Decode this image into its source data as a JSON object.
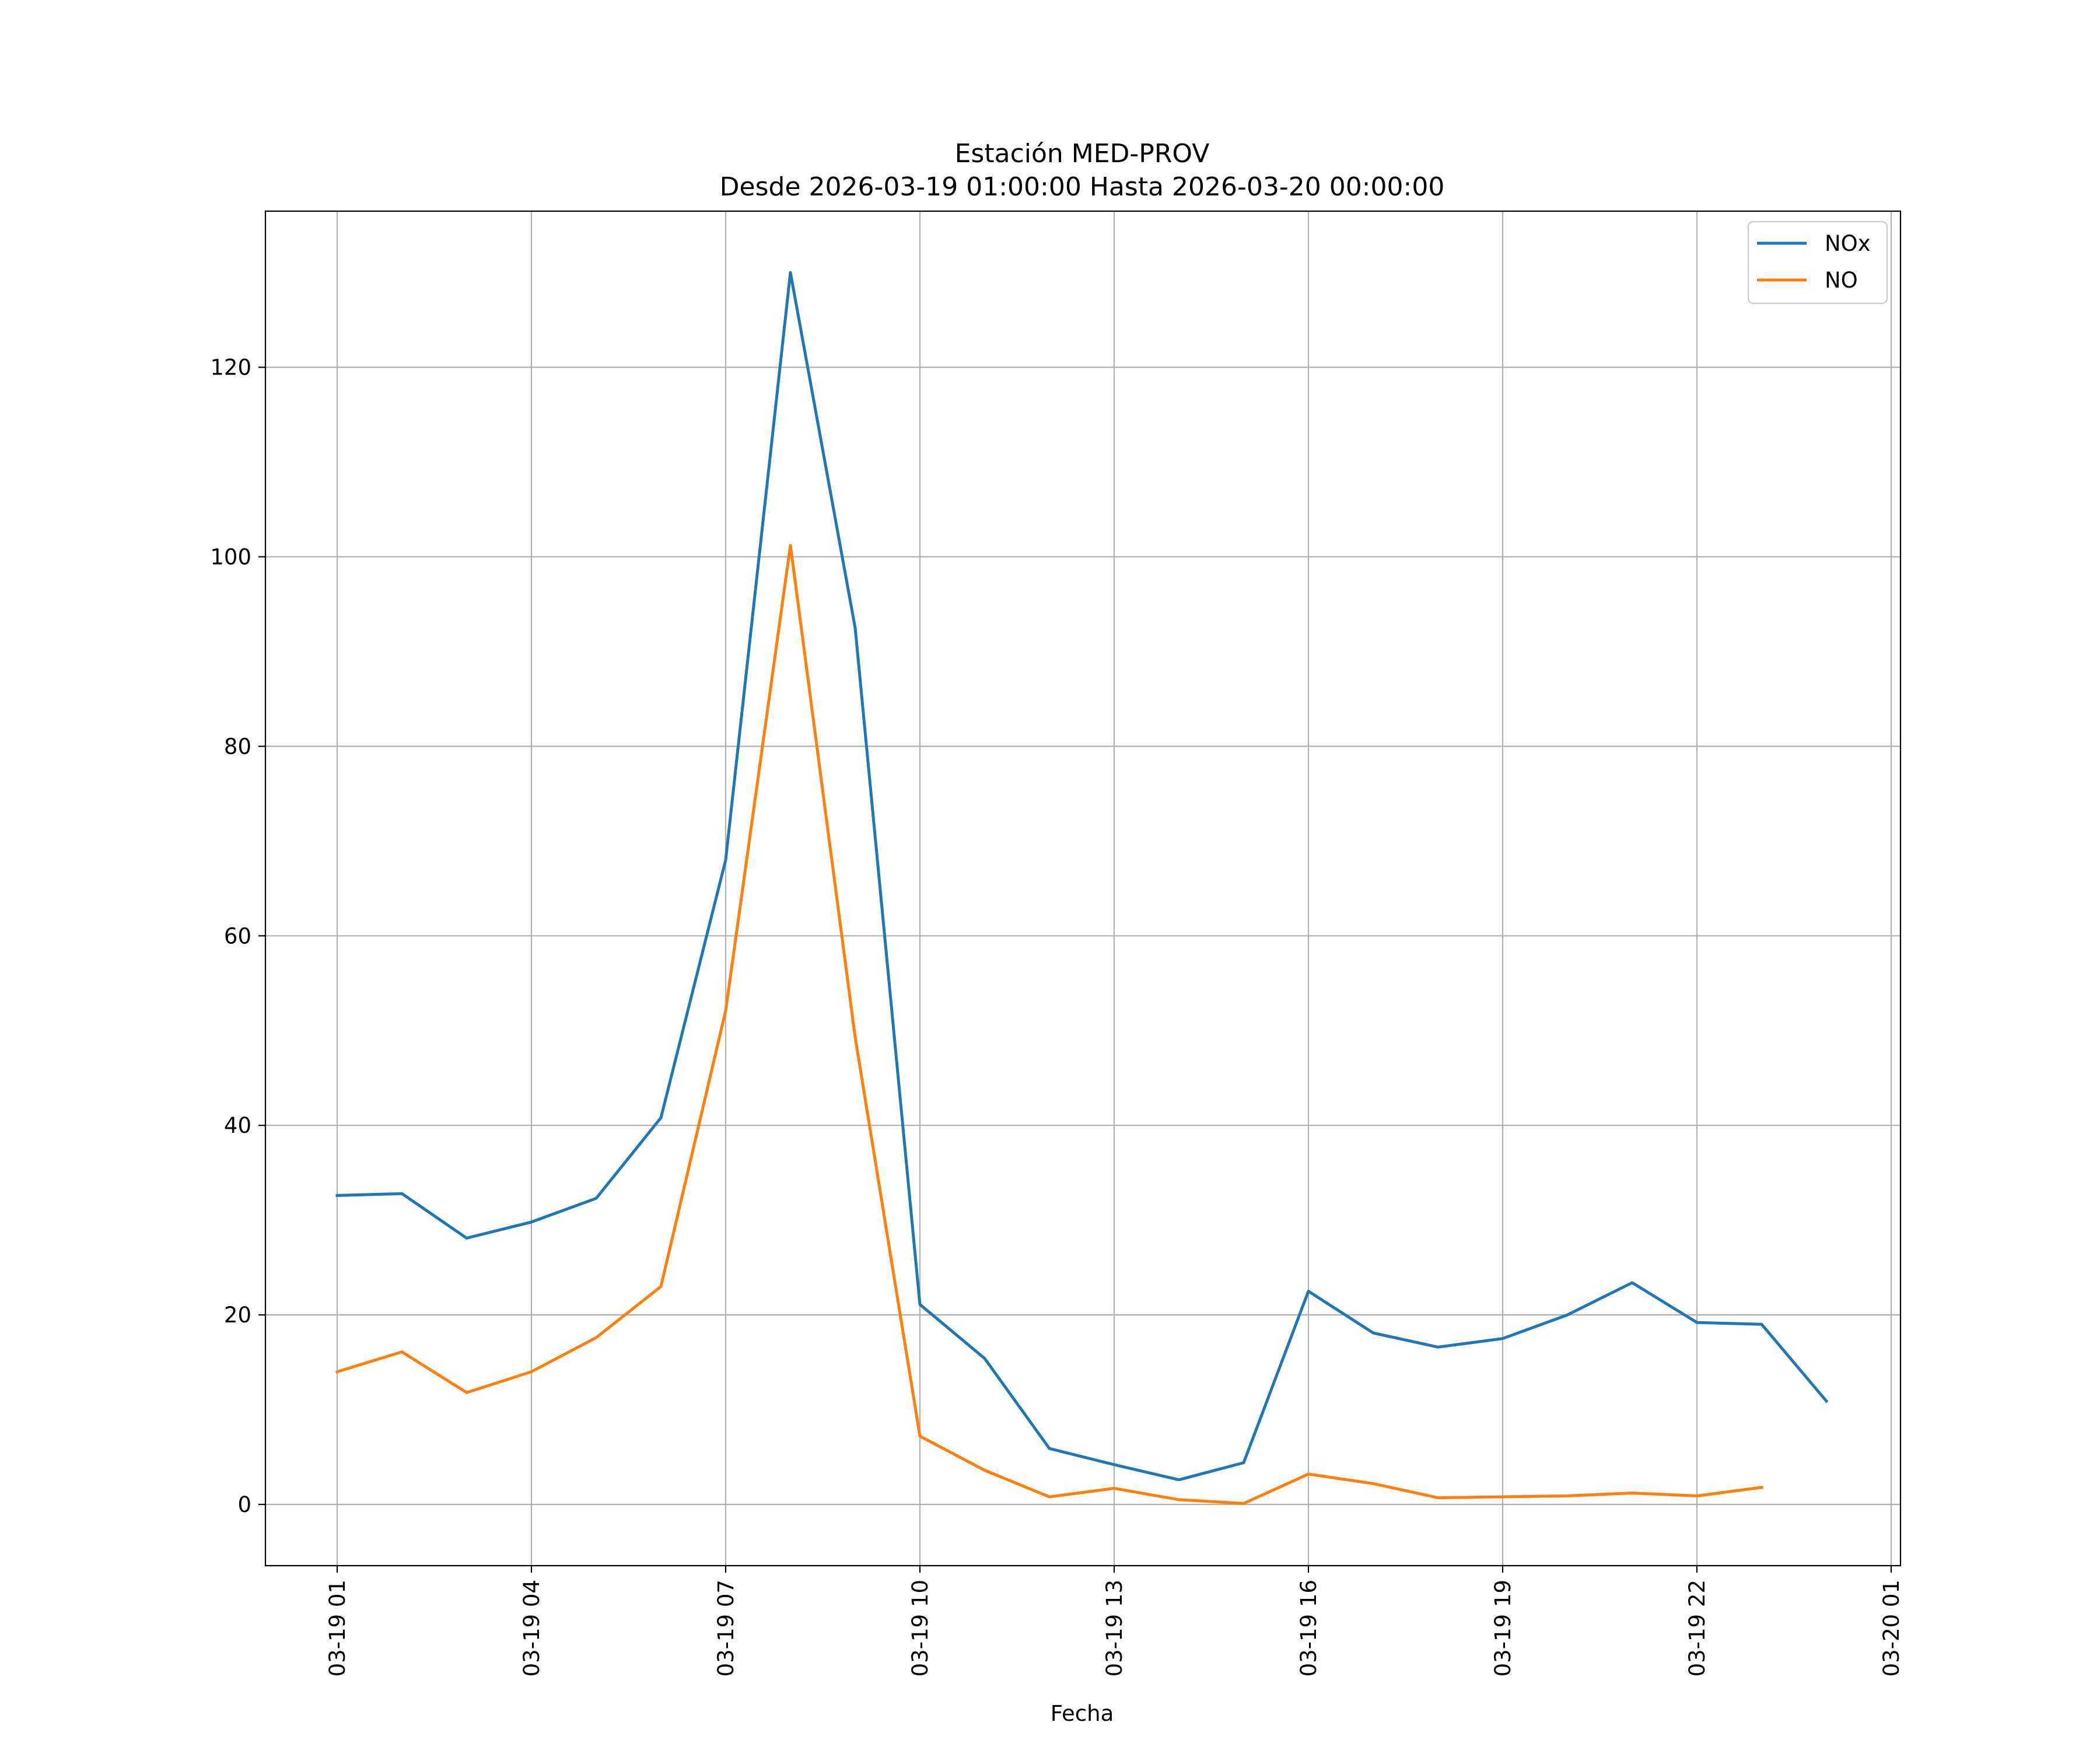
{
  "chart_data": {
    "type": "line",
    "title": "Estación MED-PROV",
    "subtitle": "Desde 2026-03-19 01:00:00 Hasta 2026-03-20 00:00:00",
    "xlabel": "Fecha",
    "ylabel": "",
    "x": [
      "03-19 01",
      "03-19 02",
      "03-19 03",
      "03-19 04",
      "03-19 05",
      "03-19 06",
      "03-19 07",
      "03-19 08",
      "03-19 09",
      "03-19 10",
      "03-19 11",
      "03-19 12",
      "03-19 13",
      "03-19 14",
      "03-19 15",
      "03-19 16",
      "03-19 17",
      "03-19 18",
      "03-19 19",
      "03-19 20",
      "03-19 21",
      "03-19 22",
      "03-19 23",
      "03-20 00"
    ],
    "x_ticks": [
      "03-19 01",
      "03-19 04",
      "03-19 07",
      "03-19 10",
      "03-19 13",
      "03-19 16",
      "03-19 19",
      "03-19 22",
      "03-20 01"
    ],
    "x_range": [
      "03-19 00:00",
      "03-20 01:12"
    ],
    "ylim": [
      -6.5,
      136.5
    ],
    "y_ticks": [
      0,
      20,
      40,
      60,
      80,
      100,
      120
    ],
    "grid": true,
    "legend_position": "top-right",
    "series": [
      {
        "name": "NOx",
        "color": "#1f77b4",
        "values": [
          32.6,
          32.8,
          28.1,
          29.8,
          32.3,
          40.8,
          68.0,
          130.0,
          92.5,
          21.1,
          15.4,
          5.9,
          4.2,
          2.6,
          4.4,
          22.5,
          18.1,
          16.6,
          17.5,
          20.0,
          23.4,
          19.2,
          19.0,
          10.9
        ]
      },
      {
        "name": "NO",
        "color": "#ff7f0e",
        "values": [
          14.0,
          16.1,
          11.8,
          14.0,
          17.6,
          23.0,
          52.1,
          101.2,
          49.3,
          7.2,
          3.6,
          0.8,
          1.7,
          0.5,
          0.1,
          3.2,
          2.2,
          0.7,
          0.8,
          0.9,
          1.2,
          0.9,
          1.8,
          null
        ]
      }
    ]
  }
}
